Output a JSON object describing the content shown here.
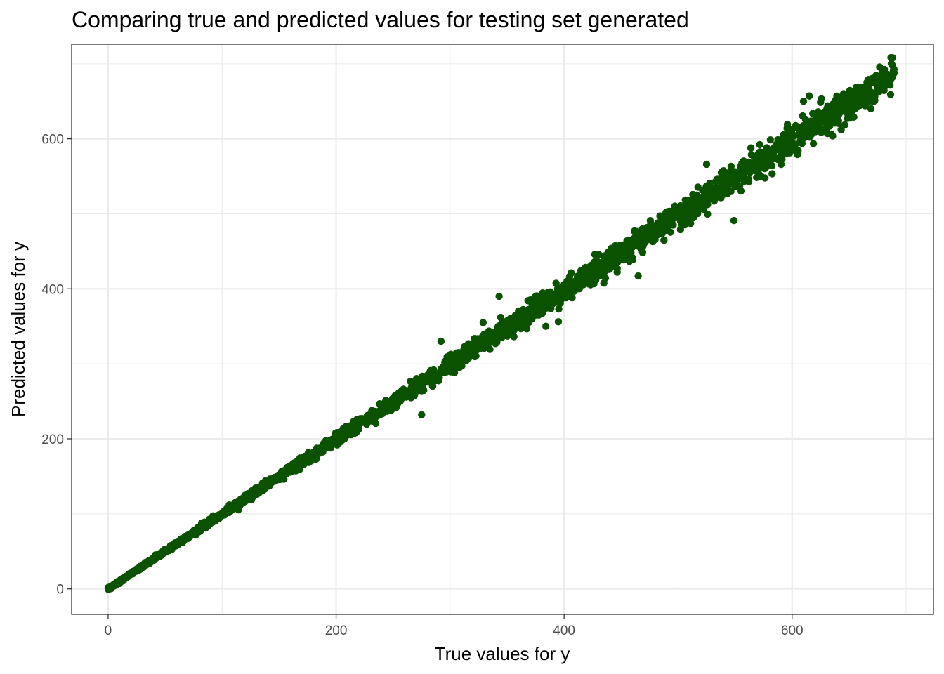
{
  "chart_data": {
    "type": "scatter",
    "title": "Comparing true and predicted values for testing set generated",
    "xlabel": "True values for y",
    "ylabel": "Predicted values for y",
    "xlim": [
      -32,
      724
    ],
    "ylim": [
      -34,
      726
    ],
    "x_ticks": [
      0,
      200,
      400,
      600
    ],
    "y_ticks": [
      0,
      200,
      400,
      600
    ],
    "x_minor": [
      100,
      300,
      500,
      700
    ],
    "y_minor": [
      100,
      300,
      500,
      700
    ],
    "grid": true,
    "point_color": "#0b5200",
    "trend": {
      "slope": 0.995,
      "intercept": 0,
      "x_range": [
        0,
        690
      ]
    },
    "outliers": {
      "x": [
        343,
        292,
        329,
        275,
        384,
        395,
        465,
        549,
        615,
        631,
        633,
        525,
        610,
        650
      ],
      "y": [
        390,
        330,
        355,
        232,
        350,
        356,
        417,
        491,
        657,
        607,
        617,
        566,
        650,
        660
      ]
    }
  }
}
